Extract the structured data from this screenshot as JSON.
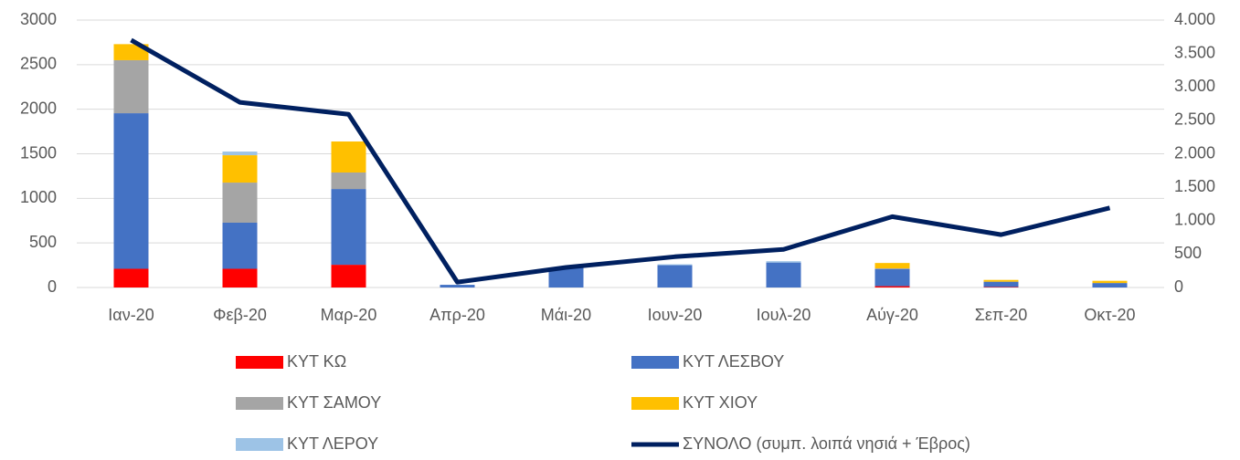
{
  "chart_data": {
    "type": "bar",
    "stacked": true,
    "categories": [
      "Ιαν-20",
      "Φεβ-20",
      "Μαρ-20",
      "Απρ-20",
      "Μάι-20",
      "Ιουν-20",
      "Ιουλ-20",
      "Αύγ-20",
      "Σεπ-20",
      "Οκτ-20"
    ],
    "series": [
      {
        "name": "ΚΥΤ ΚΩ",
        "type": "bar",
        "color": "#ff0000",
        "values": [
          210,
          210,
          255,
          0,
          0,
          0,
          0,
          15,
          5,
          0
        ]
      },
      {
        "name": "ΚΥΤ ΛΕΣΒΟΥ",
        "type": "bar",
        "color": "#4472c4",
        "values": [
          1745,
          517,
          850,
          30,
          225,
          250,
          280,
          190,
          60,
          50
        ]
      },
      {
        "name": "ΚΥΤ ΣΑΜΟΥ",
        "type": "bar",
        "color": "#a5a5a5",
        "values": [
          595,
          450,
          185,
          0,
          0,
          0,
          0,
          10,
          0,
          0
        ]
      },
      {
        "name": "ΚΥΤ ΧΙΟΥ",
        "type": "bar",
        "color": "#ffc000",
        "values": [
          180,
          307,
          348,
          0,
          0,
          0,
          0,
          60,
          20,
          25
        ]
      },
      {
        "name": "ΚΥΤ ΛΕΡΟΥ",
        "type": "bar",
        "color": "#9dc3e6",
        "values": [
          0,
          41,
          0,
          0,
          0,
          10,
          15,
          0,
          0,
          0
        ]
      },
      {
        "name": "ΣΥΝΟΛΟ (συμπ. λοιπά νησιά + Έβρος)",
        "type": "line",
        "axis": "y2",
        "color": "#002060",
        "values": [
          3700,
          2770,
          2590,
          80,
          300,
          460,
          570,
          1060,
          790,
          1190
        ]
      }
    ],
    "ylim": [
      0,
      3000
    ],
    "yticks": [
      0,
      500,
      1000,
      1500,
      2000,
      2500,
      3000
    ],
    "y2lim": [
      0,
      4000
    ],
    "y2ticks": [
      0,
      500,
      {
        "value": 1000,
        "label": "1.000"
      },
      {
        "value": 1500,
        "label": "1.500"
      },
      {
        "value": 2000,
        "label": "2.000"
      },
      {
        "value": 2500,
        "label": "2.500"
      },
      {
        "value": 3000,
        "label": "3.000"
      },
      {
        "value": 3500,
        "label": "3.500"
      },
      {
        "value": 4000,
        "label": "4.000"
      }
    ],
    "grid": true,
    "legend": "bottom"
  }
}
